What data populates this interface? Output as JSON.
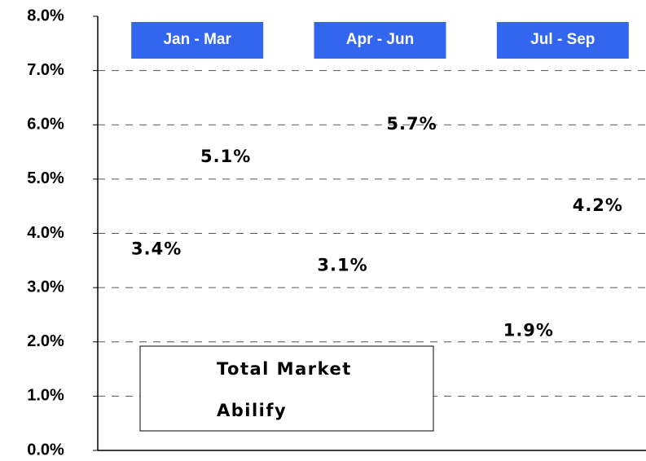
{
  "chart_data": {
    "type": "bar",
    "categories": [
      "Jan - Mar",
      "Apr - Jun",
      "Jul - Sep"
    ],
    "series": [
      {
        "name": "Total Market",
        "values": [
          3.4,
          3.1,
          1.9
        ],
        "value_labels": [
          "3.4%",
          "3.1%",
          "1.9%"
        ]
      },
      {
        "name": "Abilify",
        "values": [
          5.1,
          5.7,
          4.2
        ],
        "value_labels": [
          "5.1%",
          "5.7%",
          "4.2%"
        ]
      }
    ],
    "ylim": [
      0,
      8
    ],
    "yticks": [
      {
        "value": 0,
        "label": "0.0%"
      },
      {
        "value": 1,
        "label": "1.0%"
      },
      {
        "value": 2,
        "label": "2.0%"
      },
      {
        "value": 3,
        "label": "3.0%"
      },
      {
        "value": 4,
        "label": "4.0%"
      },
      {
        "value": 5,
        "label": "5.0%"
      },
      {
        "value": 6,
        "label": "6.0%"
      },
      {
        "value": 7,
        "label": "7.0%"
      },
      {
        "value": 8,
        "label": "8.0%"
      }
    ],
    "grid": true
  }
}
